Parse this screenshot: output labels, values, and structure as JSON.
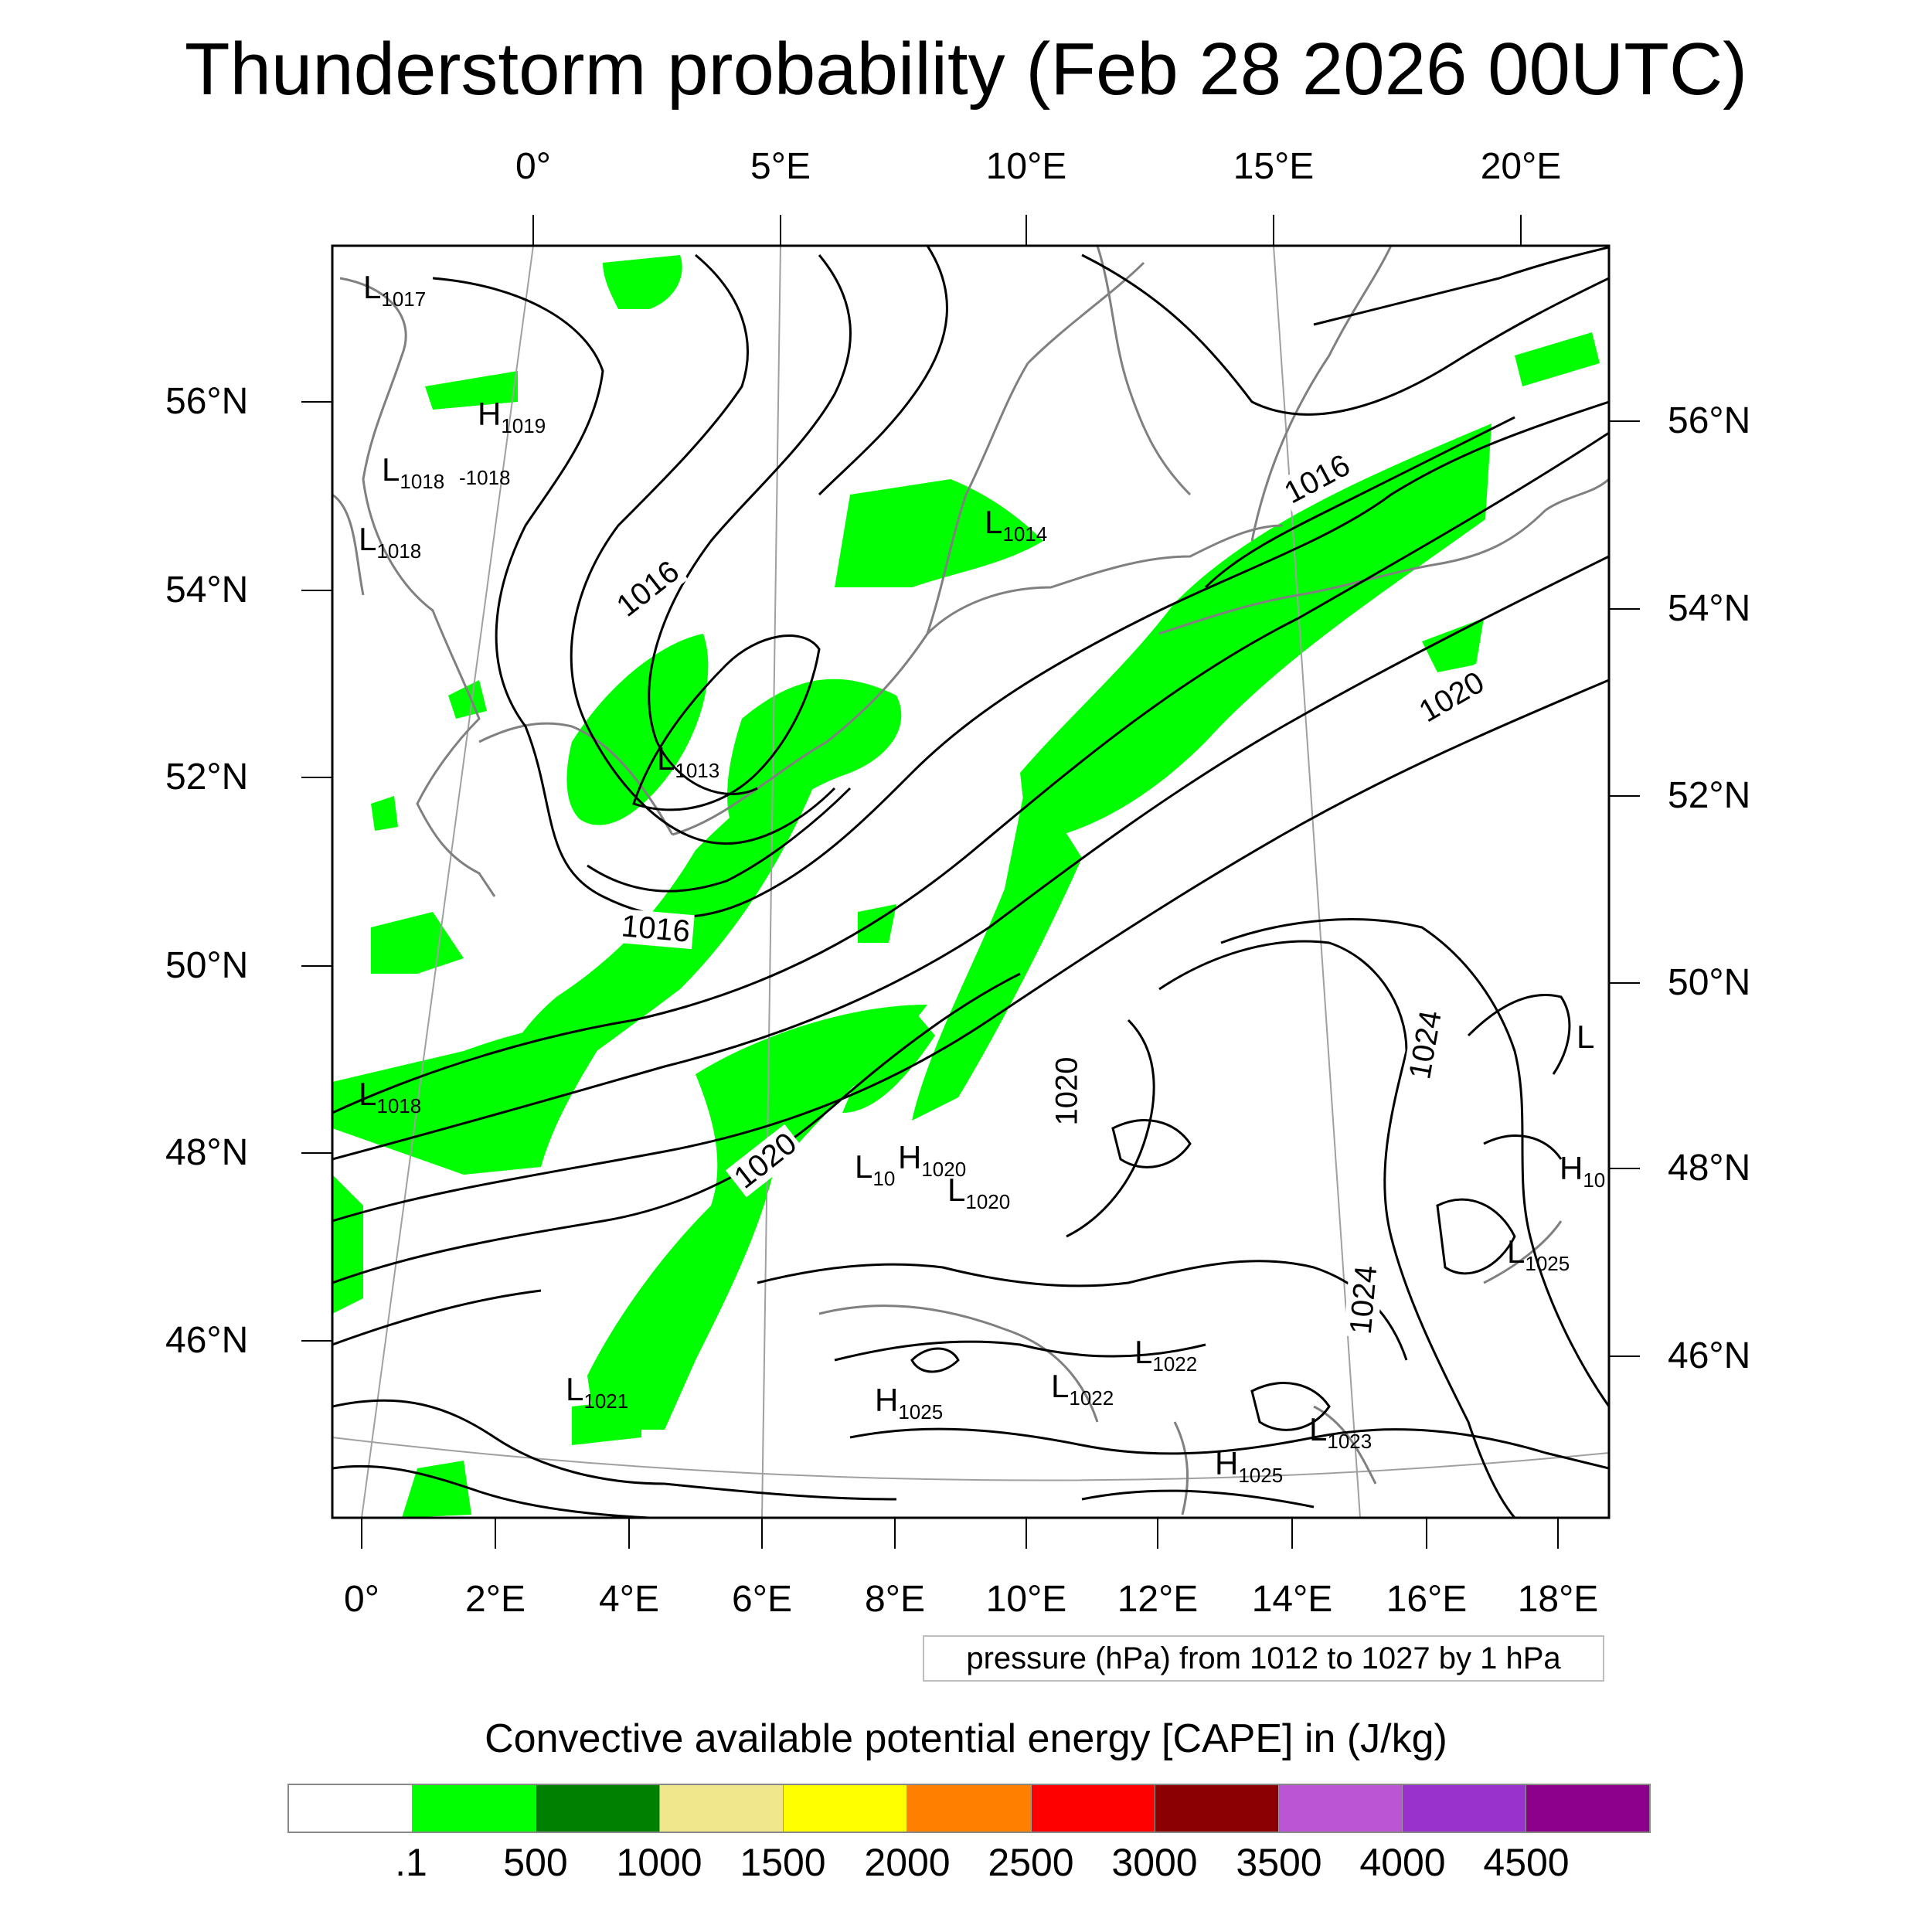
{
  "title": "Thunderstorm probability (Feb 28 2026 00UTC)",
  "top_lon_labels": [
    "0°",
    "5°E",
    "10°E",
    "15°E",
    "20°E"
  ],
  "bottom_lon_labels": [
    "0°",
    "2°E",
    "4°E",
    "6°E",
    "8°E",
    "10°E",
    "12°E",
    "14°E",
    "16°E",
    "18°E"
  ],
  "left_lat_labels": [
    "56°N",
    "54°N",
    "52°N",
    "50°N",
    "48°N",
    "46°N"
  ],
  "right_lat_labels": [
    "56°N",
    "54°N",
    "52°N",
    "50°N",
    "48°N",
    "46°N"
  ],
  "pressure_centers": [
    {
      "type": "L",
      "value": "1017"
    },
    {
      "type": "H",
      "value": "1019"
    },
    {
      "type": "L",
      "value": "1018"
    },
    {
      "type": "",
      "value": "-1018"
    },
    {
      "type": "L",
      "value": "1018"
    },
    {
      "type": "L",
      "value": "1014"
    },
    {
      "type": "L",
      "value": "1013"
    },
    {
      "type": "L",
      "value": "1018"
    },
    {
      "type": "L",
      "value": "10"
    },
    {
      "type": "H",
      "value": "1020"
    },
    {
      "type": "L",
      "value": "1020"
    },
    {
      "type": "L",
      "value": "1021"
    },
    {
      "type": "H",
      "value": "1025"
    },
    {
      "type": "L",
      "value": "1022"
    },
    {
      "type": "L",
      "value": "1022"
    },
    {
      "type": "L",
      "value": "1023"
    },
    {
      "type": "H",
      "value": "1025"
    },
    {
      "type": "L",
      "value": "1025"
    },
    {
      "type": "H",
      "value": "10"
    },
    {
      "type": "L",
      "value": ""
    }
  ],
  "isobar_labels": [
    "1016",
    "1016",
    "1016",
    "1020",
    "1020",
    "1020",
    "1024",
    "1024"
  ],
  "contour_legend": "pressure (hPa) from 1012 to 1027 by 1 hPa",
  "colorbar": {
    "title": "Convective available potential energy [CAPE] in (J/kg)",
    "colors": [
      "#ffffff",
      "#00ff00",
      "#008000",
      "#f0e68c",
      "#ffff00",
      "#ff8000",
      "#ff0000",
      "#8b0000",
      "#ba55d3",
      "#9932cc",
      "#8b008b"
    ],
    "labels": [
      ".1",
      "500",
      "1000",
      "1500",
      "2000",
      "2500",
      "3000",
      "3500",
      "4000",
      "4500"
    ]
  },
  "colors": {
    "cape_low": "#00ff00",
    "coast": "#808080",
    "contour": "#000000",
    "grid": "#a0a0a0"
  }
}
